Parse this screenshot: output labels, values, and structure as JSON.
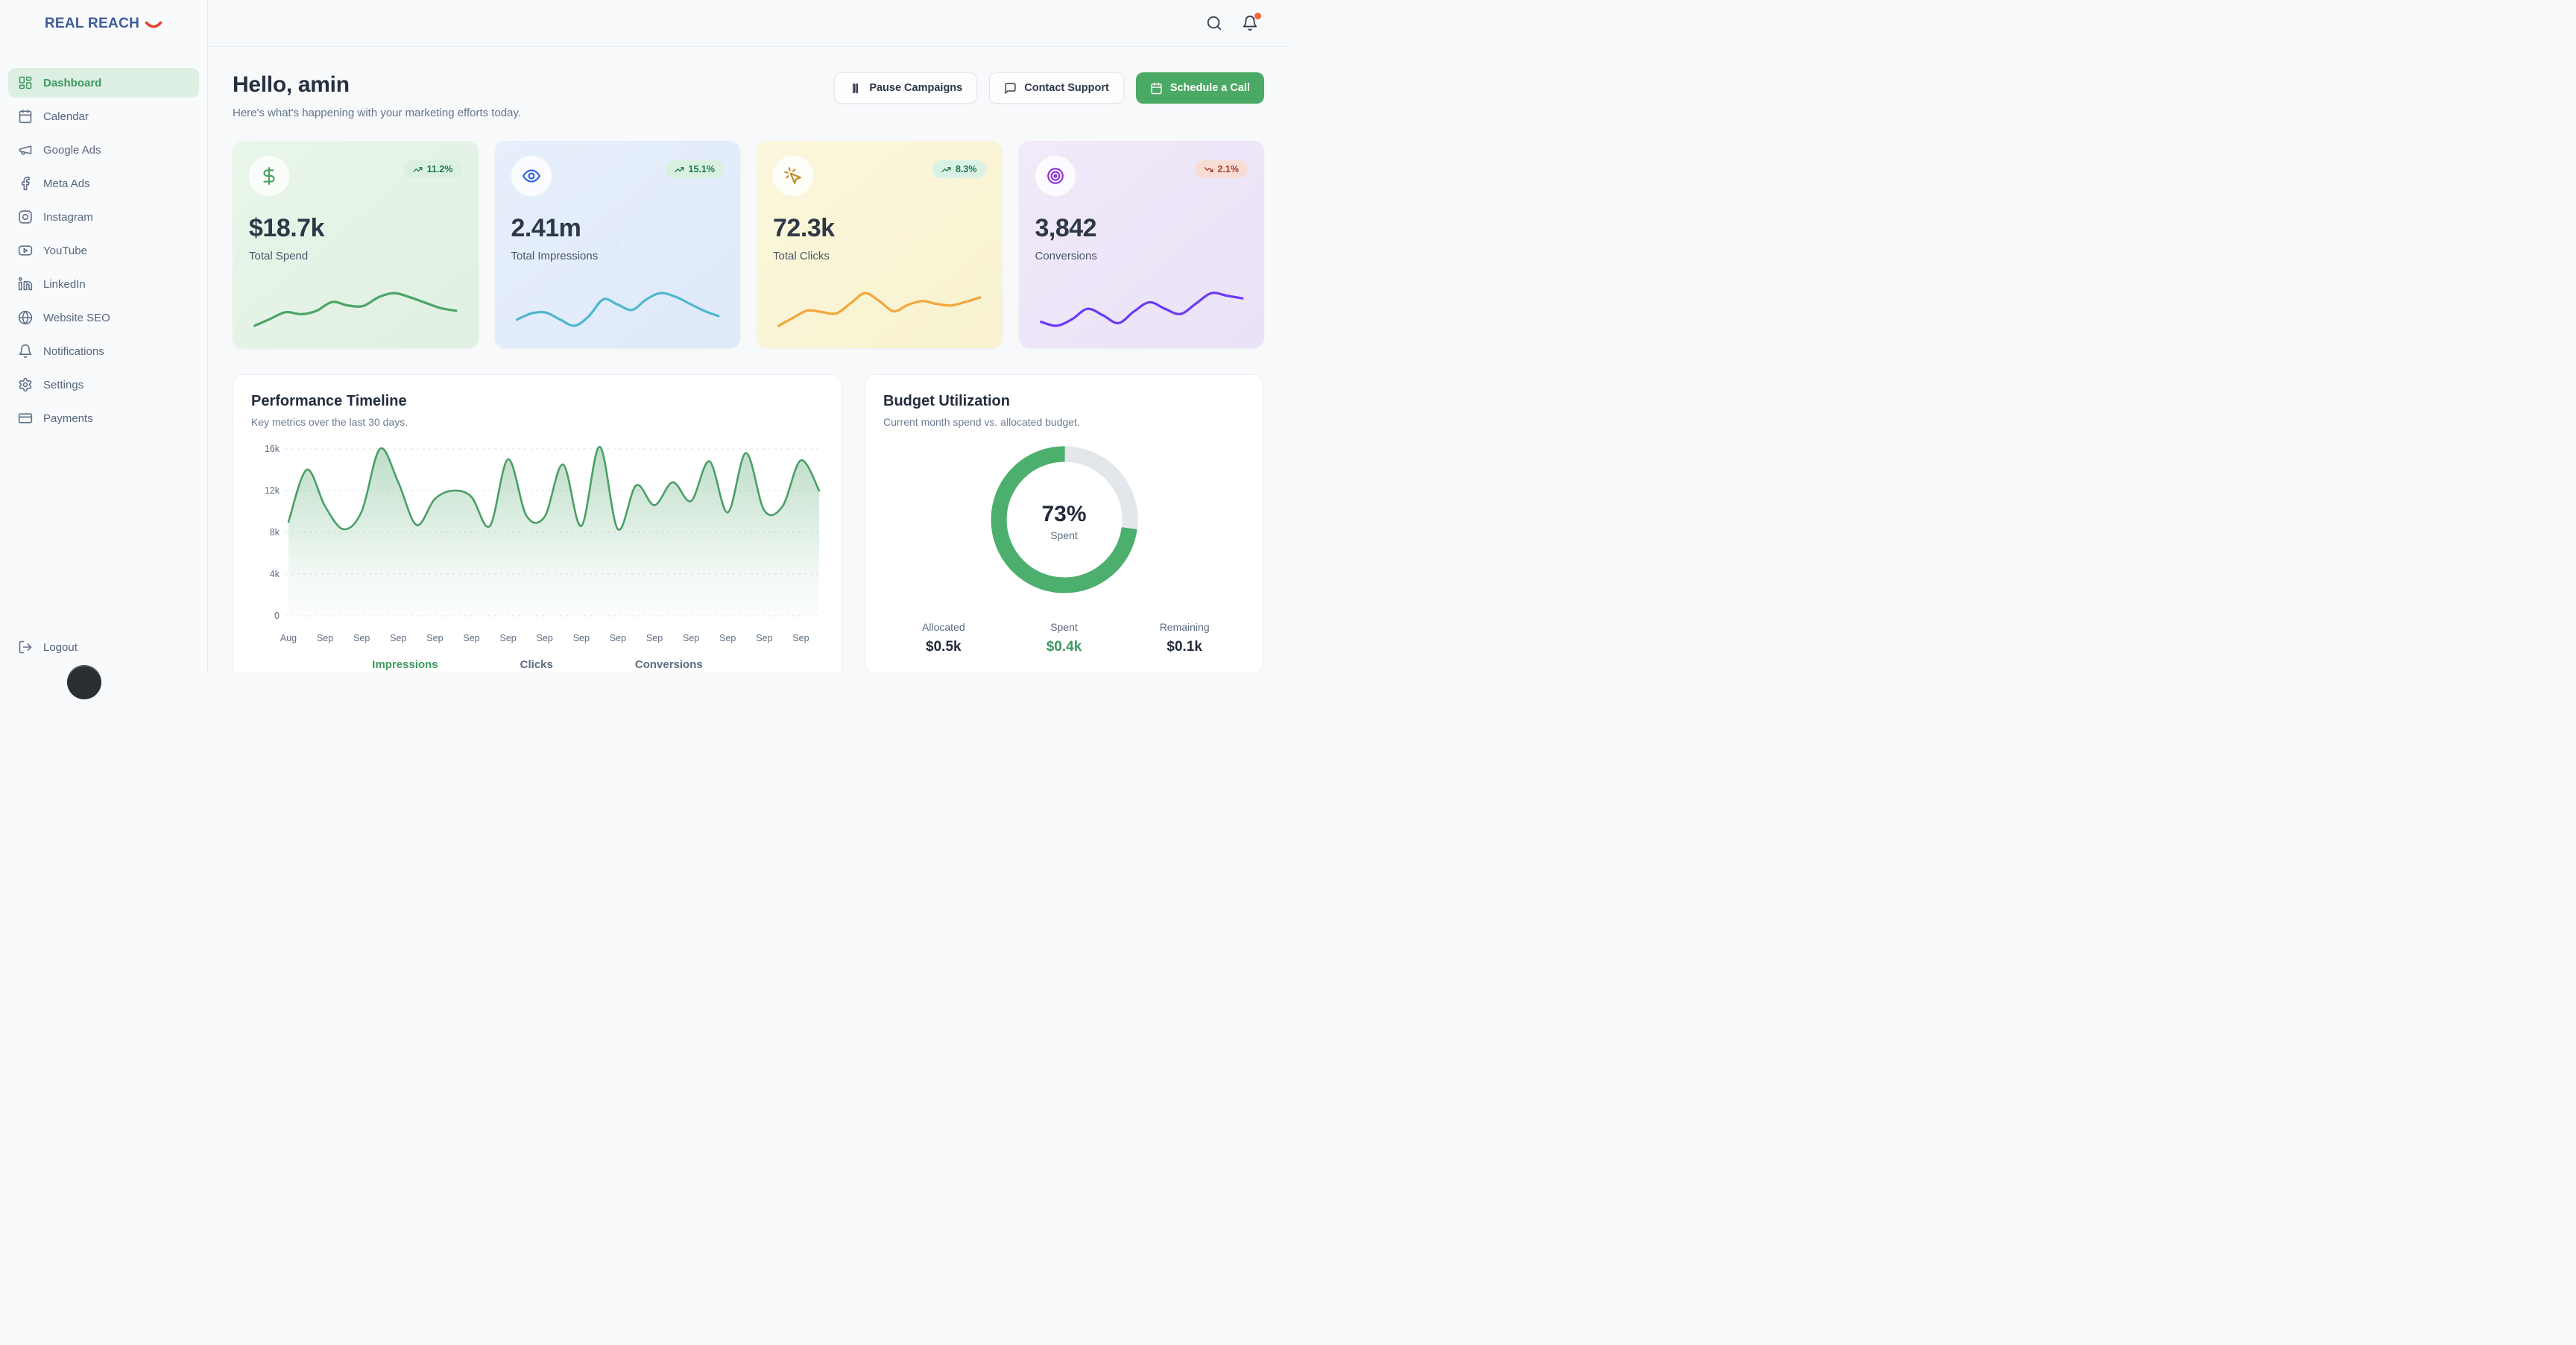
{
  "brand": {
    "name": "REAL REACH",
    "text_color": "#3c5c99",
    "smile_color": "#e0452f"
  },
  "topbar": {
    "icons": [
      {
        "name": "search"
      },
      {
        "name": "bell",
        "badge_dot_color": "#f0653e"
      }
    ]
  },
  "sidebar": {
    "items": [
      {
        "label": "Dashboard",
        "icon": "dashboard",
        "active": true
      },
      {
        "label": "Calendar",
        "icon": "calendar",
        "active": false
      },
      {
        "label": "Google Ads",
        "icon": "megaphone",
        "active": false
      },
      {
        "label": "Meta Ads",
        "icon": "facebook",
        "active": false
      },
      {
        "label": "Instagram",
        "icon": "instagram",
        "active": false
      },
      {
        "label": "YouTube",
        "icon": "youtube",
        "active": false
      },
      {
        "label": "LinkedIn",
        "icon": "linkedin",
        "active": false
      },
      {
        "label": "Website SEO",
        "icon": "globe",
        "active": false
      },
      {
        "label": "Notifications",
        "icon": "bell",
        "active": false
      },
      {
        "label": "Settings",
        "icon": "gear",
        "active": false
      },
      {
        "label": "Payments",
        "icon": "credit-card",
        "active": false
      }
    ],
    "logout_label": "Logout",
    "active_color": "#3d9960"
  },
  "header": {
    "greeting": "Hello, amin",
    "subtitle": "Here's what's happening with your marketing efforts today.",
    "actions": [
      {
        "label": "Pause Campaigns",
        "icon": "pause",
        "variant": "outline"
      },
      {
        "label": "Contact Support",
        "icon": "message",
        "variant": "outline"
      },
      {
        "label": "Schedule a Call",
        "icon": "calendar",
        "variant": "primary",
        "bg": "#4aa964"
      }
    ]
  },
  "stats": [
    {
      "label": "Total Spend",
      "value": "$18.7k",
      "change": "11.2%",
      "direction": "up",
      "icon": "dollar",
      "card_bg1": "#e9f6ea",
      "card_bg2": "#e0f0e2",
      "dot": "rgba(60,110,70,0.10)",
      "icon_color": "#46a05e",
      "spark_color": "#4da567",
      "badge_bg": "#dcf0e2",
      "badge_color": "#1e7a47",
      "spark": [
        2.8,
        3.8,
        4.8,
        4.5,
        5.0,
        6.3,
        5.8,
        5.7,
        7.0,
        7.6,
        7.0,
        6.2,
        5.4,
        5.0
      ]
    },
    {
      "label": "Total Impressions",
      "value": "2.41m",
      "change": "15.1%",
      "direction": "up",
      "icon": "eye",
      "card_bg1": "#e7effb",
      "card_bg2": "#dfe9f9",
      "dot": "rgba(60,80,140,0.10)",
      "icon_color": "#2f5fe0",
      "spark_color": "#53b7ce",
      "badge_bg": "#d9f0e0",
      "badge_color": "#1e7a47",
      "spark": [
        3.2,
        3.9,
        4.0,
        3.2,
        2.5,
        3.6,
        5.5,
        4.9,
        4.3,
        5.5,
        6.2,
        5.8,
        5.0,
        4.2,
        3.6
      ]
    },
    {
      "label": "Total Clicks",
      "value": "72.3k",
      "change": "8.3%",
      "direction": "up",
      "icon": "cursor-click",
      "card_bg1": "#fbf7dc",
      "card_bg2": "#f8f2cf",
      "dot": "rgba(140,120,40,0.12)",
      "icon_color": "#c08a27",
      "spark_color": "#f0a73c",
      "badge_bg": "#daf1e6",
      "badge_color": "#1e7a47",
      "spark": [
        1.5,
        2.6,
        3.6,
        3.4,
        3.2,
        4.6,
        6.0,
        4.9,
        3.5,
        4.4,
        4.9,
        4.5,
        4.3,
        4.8,
        5.4
      ]
    },
    {
      "label": "Conversions",
      "value": "3,842",
      "change": "2.1%",
      "direction": "down",
      "icon": "target",
      "card_bg1": "#f0eaf9",
      "card_bg2": "#eae2f6",
      "dot": "rgba(110,70,150,0.10)",
      "icon_color": "#8b32d4",
      "spark_color": "#6d3bf5",
      "badge_bg": "#f7ddd4",
      "badge_color": "#a83a2f",
      "spark": [
        2.4,
        2.1,
        2.6,
        3.4,
        2.9,
        2.3,
        3.2,
        3.9,
        3.4,
        3.0,
        3.8,
        4.6,
        4.4,
        4.2
      ]
    }
  ],
  "performance": {
    "title": "Performance Timeline",
    "subtitle": "Key metrics over the last 30 days.",
    "tabs": [
      {
        "label": "Impressions",
        "active": true
      },
      {
        "label": "Clicks",
        "active": false
      },
      {
        "label": "Conversions",
        "active": false
      }
    ],
    "chart_data": {
      "type": "area",
      "title": "Performance Timeline",
      "x_labels": [
        "Aug",
        "Sep",
        "Sep",
        "Sep",
        "Sep",
        "Sep",
        "Sep",
        "Sep",
        "Sep",
        "Sep",
        "Sep",
        "Sep",
        "Sep",
        "Sep",
        "Sep"
      ],
      "values_k": [
        9.0,
        14.0,
        10.5,
        8.3,
        10.0,
        16.0,
        12.8,
        8.7,
        11.2,
        12.0,
        11.4,
        8.6,
        15.0,
        9.6,
        9.5,
        14.5,
        8.6,
        16.2,
        8.3,
        12.5,
        10.6,
        12.8,
        11.0,
        14.8,
        9.9,
        15.6,
        10.1,
        10.5,
        14.9,
        12.0
      ],
      "y_ticks": [
        "0",
        "4k",
        "8k",
        "12k",
        "16k"
      ],
      "ylim": [
        0,
        16000
      ],
      "grid": true,
      "legend": "none",
      "line_color": "#4b9e66",
      "fill_color": "rgba(82,166,109,0.32)"
    }
  },
  "budget": {
    "title": "Budget Utilization",
    "subtitle": "Current month spend vs. allocated budget.",
    "percent": 73,
    "percent_display": "73%",
    "center_label": "Spent",
    "ring_color": "#4caf6e",
    "track_color": "#e3e7ec",
    "stats": [
      {
        "label": "Allocated",
        "value": "$0.5k",
        "color": "#232c3a"
      },
      {
        "label": "Spent",
        "value": "$0.4k",
        "color": "#3d9960"
      },
      {
        "label": "Remaining",
        "value": "$0.1k",
        "color": "#232c3a"
      }
    ]
  }
}
